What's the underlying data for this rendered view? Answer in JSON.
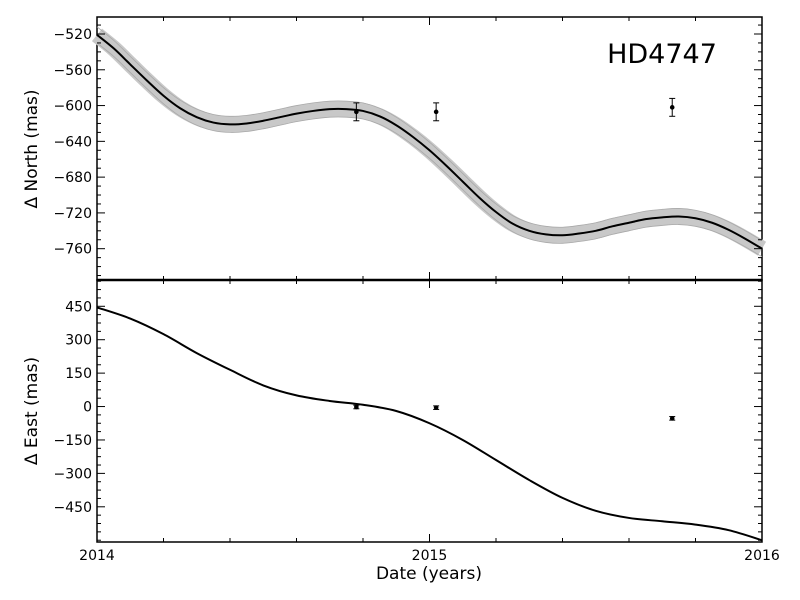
{
  "chart_data": [
    {
      "type": "line",
      "title": "HD4747",
      "ylabel": "Δ North (mas)",
      "xlim": [
        2014,
        2016
      ],
      "ylim": [
        -795,
        -501
      ],
      "yticks": [
        -520,
        -560,
        -600,
        -640,
        -680,
        -720,
        -760
      ],
      "band_color": "#c8c8c8",
      "line_color": "#000000",
      "series": [
        {
          "kind": "model",
          "x": [
            2014.0,
            2014.05,
            2014.1,
            2014.15,
            2014.2,
            2014.25,
            2014.3,
            2014.35,
            2014.4,
            2014.45,
            2014.5,
            2014.55,
            2014.6,
            2014.65,
            2014.7,
            2014.75,
            2014.8,
            2014.85,
            2014.9,
            2014.95,
            2015.0,
            2015.05,
            2015.1,
            2015.15,
            2015.2,
            2015.25,
            2015.3,
            2015.35,
            2015.4,
            2015.45,
            2015.5,
            2015.55,
            2015.6,
            2015.65,
            2015.7,
            2015.75,
            2015.8,
            2015.85,
            2015.9,
            2015.95,
            2016.0
          ],
          "y": [
            -521,
            -536,
            -554,
            -572,
            -589,
            -603,
            -613,
            -619,
            -621,
            -620,
            -617,
            -613,
            -609,
            -606,
            -604,
            -604,
            -606,
            -612,
            -622,
            -635,
            -650,
            -667,
            -685,
            -703,
            -719,
            -732,
            -740,
            -744,
            -745,
            -743,
            -740,
            -735,
            -731,
            -727,
            -725,
            -724,
            -726,
            -731,
            -739,
            -749,
            -760
          ],
          "band_halfwidth": 9
        },
        {
          "kind": "observed",
          "x": [
            2014.78,
            2015.02,
            2015.73
          ],
          "y": [
            -607,
            -607,
            -602
          ],
          "yerr": [
            10,
            10,
            10
          ]
        }
      ]
    },
    {
      "type": "line",
      "ylabel": "Δ East (mas)",
      "xlabel": "Date (years)",
      "xlim": [
        2014,
        2016
      ],
      "ylim": [
        -608,
        568
      ],
      "yticks": [
        450,
        300,
        150,
        0,
        -150,
        -300,
        -450
      ],
      "xticks": [
        2014,
        2015,
        2016
      ],
      "line_color": "#000000",
      "series": [
        {
          "kind": "model",
          "x": [
            2014.0,
            2014.1,
            2014.2,
            2014.3,
            2014.4,
            2014.5,
            2014.6,
            2014.7,
            2014.8,
            2014.9,
            2015.0,
            2015.1,
            2015.2,
            2015.3,
            2015.4,
            2015.5,
            2015.6,
            2015.7,
            2015.8,
            2015.9,
            2016.0
          ],
          "y": [
            445,
            395,
            325,
            240,
            165,
            95,
            50,
            25,
            8,
            -20,
            -75,
            -150,
            -240,
            -330,
            -410,
            -468,
            -500,
            -515,
            -530,
            -555,
            -600
          ]
        },
        {
          "kind": "observed",
          "x": [
            2014.78,
            2015.02,
            2015.73
          ],
          "y": [
            -2,
            -5,
            -53
          ],
          "yerr": [
            8,
            8,
            8
          ]
        }
      ]
    }
  ]
}
